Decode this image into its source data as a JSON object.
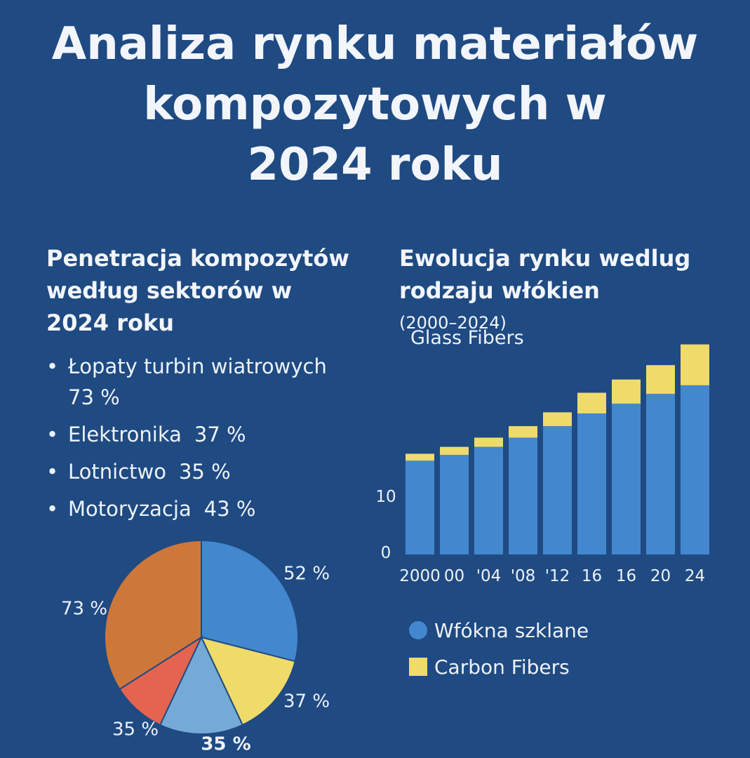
{
  "title_lines": [
    "Analiza rynku materiałów",
    "kompozytowych w",
    "2024 roku"
  ],
  "left_section": {
    "title_lines": [
      "Penetracja kompozytów",
      "według sektorów w",
      "2024 roku"
    ],
    "bullets": [
      {
        "label": "Łopaty turbin wiatrowych",
        "value": "73 %"
      },
      {
        "label": "Elektronika",
        "value": "37 %"
      },
      {
        "label": "Lotnictwo",
        "value": "35 %"
      },
      {
        "label": "Motoryzacja",
        "value": "43 %"
      }
    ]
  },
  "right_section": {
    "title_lines": [
      "Ewolucja rynku wedlug",
      "rodzaju włókien"
    ],
    "title_range": "(2000–2024)",
    "caption": "Glass Fibers"
  },
  "colors": {
    "background": "#1f4a82",
    "glass": "#4388cf",
    "carbon": "#efdb6a",
    "pie": [
      "#4388cf",
      "#efdb6a",
      "#75aad6",
      "#e5644f",
      "#cd773b"
    ]
  },
  "chart_data": [
    {
      "type": "pie",
      "slices": [
        {
          "label": "52 %",
          "value": 29
        },
        {
          "label": "37 %",
          "value": 14
        },
        {
          "label": "35 %",
          "value": 14
        },
        {
          "label": "35 %",
          "value": 9
        },
        {
          "label": "73 %",
          "value": 34
        }
      ]
    },
    {
      "type": "bar",
      "stacked": true,
      "categories": [
        "2000",
        "00",
        "'04",
        "'08",
        "'12",
        "16",
        "16",
        "20",
        "24"
      ],
      "series": [
        {
          "name": "Wfókna szklane",
          "values": [
            16.3,
            17.3,
            18.7,
            20.3,
            22.3,
            24.5,
            26.2,
            27.9,
            29.4
          ]
        },
        {
          "name": "Carbon Fibers",
          "values": [
            1.2,
            1.4,
            1.6,
            2.0,
            2.4,
            3.6,
            4.2,
            5.0,
            7.1
          ]
        }
      ],
      "y_ticks": [
        "0",
        "10"
      ],
      "ylim": [
        0,
        40
      ]
    }
  ]
}
